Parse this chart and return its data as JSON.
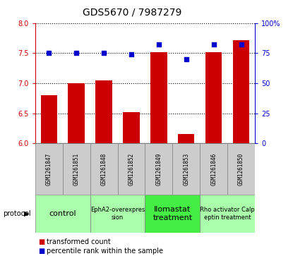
{
  "title": "GDS5670 / 7987279",
  "samples": [
    "GSM1261847",
    "GSM1261851",
    "GSM1261848",
    "GSM1261852",
    "GSM1261849",
    "GSM1261853",
    "GSM1261846",
    "GSM1261850"
  ],
  "transformed_counts": [
    6.8,
    7.0,
    7.05,
    6.52,
    7.52,
    6.15,
    7.52,
    7.72
  ],
  "percentile_ranks": [
    75,
    75,
    75,
    74,
    82,
    70,
    82,
    82
  ],
  "ylim_left": [
    6.0,
    8.0
  ],
  "ylim_right": [
    0,
    100
  ],
  "yticks_left": [
    6.0,
    6.5,
    7.0,
    7.5,
    8.0
  ],
  "yticks_right": [
    0,
    25,
    50,
    75,
    100
  ],
  "ytick_labels_right": [
    "0",
    "25",
    "50",
    "75",
    "100%"
  ],
  "protocols": [
    {
      "label": "control",
      "start": 0,
      "end": 2,
      "color": "#aaffaa",
      "fontsize": 8
    },
    {
      "label": "EphA2-overexpres\nsion",
      "start": 2,
      "end": 4,
      "color": "#aaffaa",
      "fontsize": 6
    },
    {
      "label": "Ilomastat\ntreatment",
      "start": 4,
      "end": 6,
      "color": "#44ee44",
      "fontsize": 8
    },
    {
      "label": "Rho activator Calp\neptin treatment",
      "start": 6,
      "end": 8,
      "color": "#aaffaa",
      "fontsize": 6
    }
  ],
  "bar_color": "#cc0000",
  "dot_color": "#0000cc",
  "bar_bottom": 6.0,
  "grid_color": "black",
  "background_color": "white",
  "left_axis_color": "#cc0000",
  "right_axis_color": "#0000cc",
  "sample_box_color": "#cccccc",
  "title_fontsize": 10
}
